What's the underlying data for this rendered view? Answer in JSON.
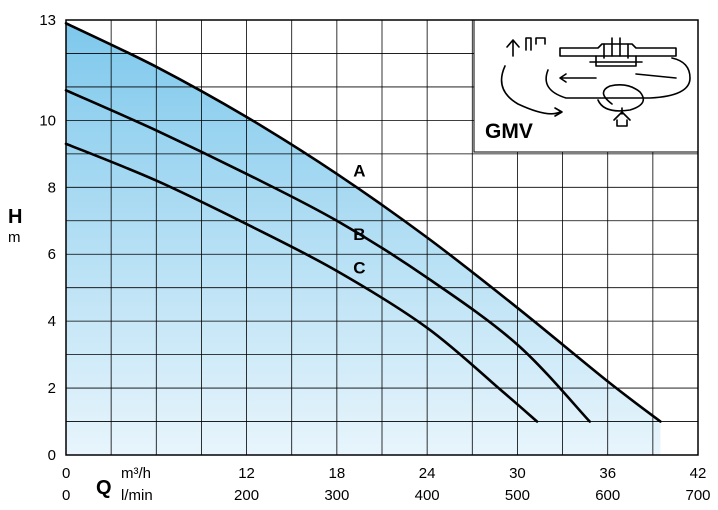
{
  "chart_data": {
    "type": "line",
    "title": "",
    "model_label": "GMV",
    "x_axis": {
      "symbol": "Q",
      "unit_primary": "m³/h",
      "unit_secondary": "l/min",
      "range": [
        0,
        42
      ],
      "ticks_primary": [
        0,
        12,
        18,
        24,
        30,
        36,
        42
      ],
      "tick_labels_primary": [
        "0",
        "12",
        "18",
        "24",
        "30",
        "36",
        "42"
      ],
      "ticks_secondary": [
        0,
        200,
        300,
        400,
        500,
        600,
        700
      ],
      "tick_labels_secondary": [
        "0",
        "200",
        "300",
        "400",
        "500",
        "600",
        "700"
      ],
      "minor_step": 3
    },
    "y_axis": {
      "symbol": "H",
      "unit": "m",
      "range": [
        0,
        13
      ],
      "ticks": [
        0,
        2,
        4,
        6,
        8,
        10,
        13
      ],
      "tick_labels": [
        "0",
        "2",
        "4",
        "6",
        "8",
        "10",
        "13"
      ],
      "minor_step": 1
    },
    "grid": true,
    "series": [
      {
        "name": "A",
        "color": "#000000",
        "label_at": [
          19.5,
          8.5
        ],
        "x": [
          0,
          6,
          12,
          18,
          24,
          30,
          36,
          39.5
        ],
        "y": [
          12.9,
          11.6,
          10.1,
          8.4,
          6.5,
          4.4,
          2.2,
          1.0
        ]
      },
      {
        "name": "B",
        "color": "#000000",
        "label_at": [
          19.5,
          6.6
        ],
        "x": [
          0,
          6,
          12,
          18,
          24,
          30,
          34.8
        ],
        "y": [
          10.9,
          9.7,
          8.4,
          7.0,
          5.3,
          3.3,
          1.0
        ]
      },
      {
        "name": "C",
        "color": "#000000",
        "label_at": [
          19.5,
          5.6
        ],
        "x": [
          0,
          6,
          12,
          18,
          24,
          29,
          31.3
        ],
        "y": [
          9.3,
          8.2,
          6.9,
          5.5,
          3.8,
          1.9,
          1.0
        ]
      }
    ],
    "fill_colors": {
      "top": "#7ec8ec",
      "bottom": "#e8f5fc"
    },
    "inset_icon": "pump-flow-schematic"
  }
}
